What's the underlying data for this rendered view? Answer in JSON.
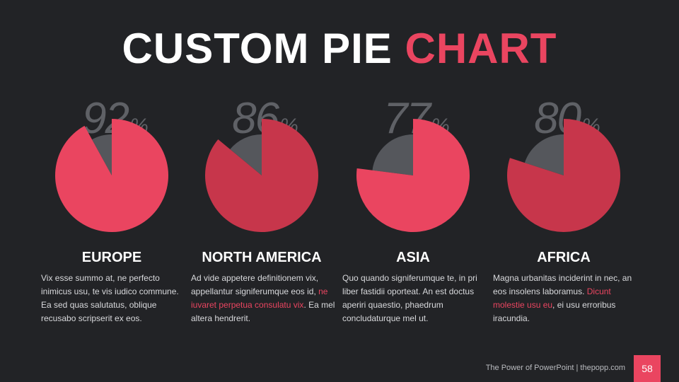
{
  "title": {
    "part1": "CUSTOM PIE",
    "part2": "CHART"
  },
  "colors": {
    "background": "#222326",
    "accent": "#ea4560",
    "accent_dark": "#c7364b",
    "remainder": "#55575c",
    "muted_text": "#5f6166"
  },
  "percent_symbol": "%",
  "regions": [
    {
      "value_label": "92",
      "name": "EUROPE",
      "desc_parts": [
        "Vix esse summo at, ne perfecto inimicus usu, te vis iudico commune. Ea sed quas salutatus, oblique recusabo scripserit ex eos.",
        "",
        ""
      ]
    },
    {
      "value_label": "86",
      "name": "NORTH AMERICA",
      "desc_parts": [
        "Ad vide appetere definitionem vix, appellantur signiferumque eos id, ",
        "ne iuvaret perpetua consulatu vix",
        ". Ea mel altera hendrerit."
      ]
    },
    {
      "value_label": "77",
      "name": "ASIA",
      "desc_parts": [
        "Quo quando signiferumque te, in pri liber fastidii oporteat. An est doctus aperiri quaestio, phaedrum concludaturque mel ut.",
        "",
        ""
      ]
    },
    {
      "value_label": "80",
      "name": "AFRICA",
      "desc_parts": [
        "Magna urbanitas inciderint in nec, an eos insolens laboramus. ",
        "Dicunt molestie usu eu",
        ", ei usu erroribus iracundia."
      ]
    }
  ],
  "chart_data": {
    "type": "pie",
    "title": "CUSTOM PIE CHART",
    "categories": [
      "EUROPE",
      "NORTH AMERICA",
      "ASIA",
      "AFRICA"
    ],
    "values": [
      92,
      86,
      77,
      80
    ],
    "unit": "%"
  },
  "footer": {
    "text": "The Power of PowerPoint | thepopp.com",
    "page": "58"
  }
}
